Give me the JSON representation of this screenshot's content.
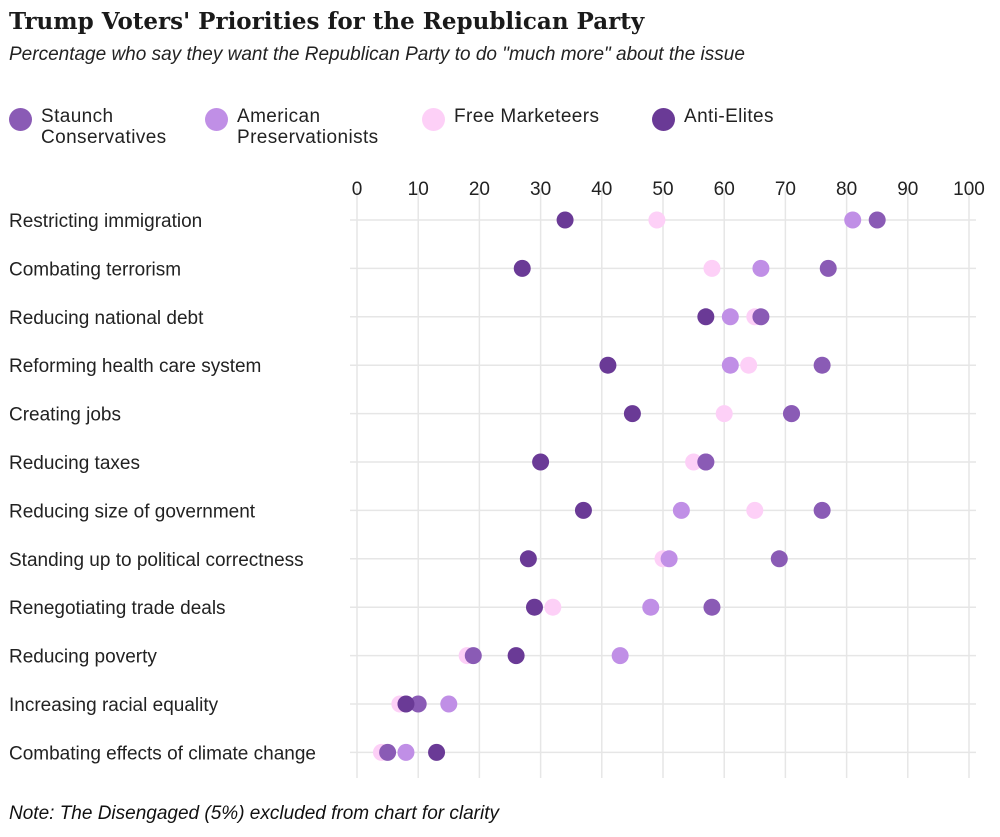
{
  "title": "Trump Voters' Priorities for the Republican Party",
  "subtitle": "Percentage who say they want the Republican Party to do \"much more\" about the issue",
  "note": "Note: The Disengaged (5%) excluded from chart for clarity",
  "colors": {
    "staunch": "#8a5bb5",
    "preservationists": "#c08fe6",
    "free_marketeers": "#fdd0f7",
    "anti_elites": "#6a3a96",
    "grid": "#e6e6e6"
  },
  "legend": [
    {
      "label": "Staunch\nConservatives",
      "color": "#8a5bb5"
    },
    {
      "label": "American\nPreservationists",
      "color": "#c08fe6"
    },
    {
      "label": "Free Marketeers",
      "color": "#fdd0f7"
    },
    {
      "label": "Anti-Elites",
      "color": "#6a3a96"
    }
  ],
  "chart_data": {
    "type": "scatter",
    "orientation": "horizontal-dot",
    "xlim": [
      0,
      100
    ],
    "xticks": [
      0,
      10,
      20,
      30,
      40,
      50,
      60,
      70,
      80,
      90,
      100
    ],
    "grid": true,
    "legend_position": "top",
    "categories": [
      "Restricting immigration",
      "Combating terrorism",
      "Reducing national debt",
      "Reforming health care system",
      "Creating jobs",
      "Reducing taxes",
      "Reducing size of government",
      "Standing up to political correctness",
      "Renegotiating trade deals",
      "Reducing poverty",
      "Increasing racial equality",
      "Combating effects of climate change"
    ],
    "series": [
      {
        "name": "Free Marketeers",
        "color": "#fdd0f7",
        "values": [
          49,
          58,
          65,
          64,
          60,
          55,
          65,
          50,
          32,
          18,
          7,
          4
        ]
      },
      {
        "name": "American Preservationists",
        "color": "#c08fe6",
        "values": [
          81,
          66,
          61,
          61,
          71,
          57,
          53,
          51,
          48,
          43,
          15,
          8
        ]
      },
      {
        "name": "Staunch Conservatives",
        "color": "#8a5bb5",
        "values": [
          85,
          77,
          66,
          76,
          71,
          57,
          76,
          69,
          58,
          19,
          10,
          5
        ]
      },
      {
        "name": "Anti-Elites",
        "color": "#6a3a96",
        "values": [
          34,
          27,
          57,
          41,
          45,
          30,
          37,
          28,
          29,
          26,
          8,
          13
        ]
      }
    ]
  }
}
